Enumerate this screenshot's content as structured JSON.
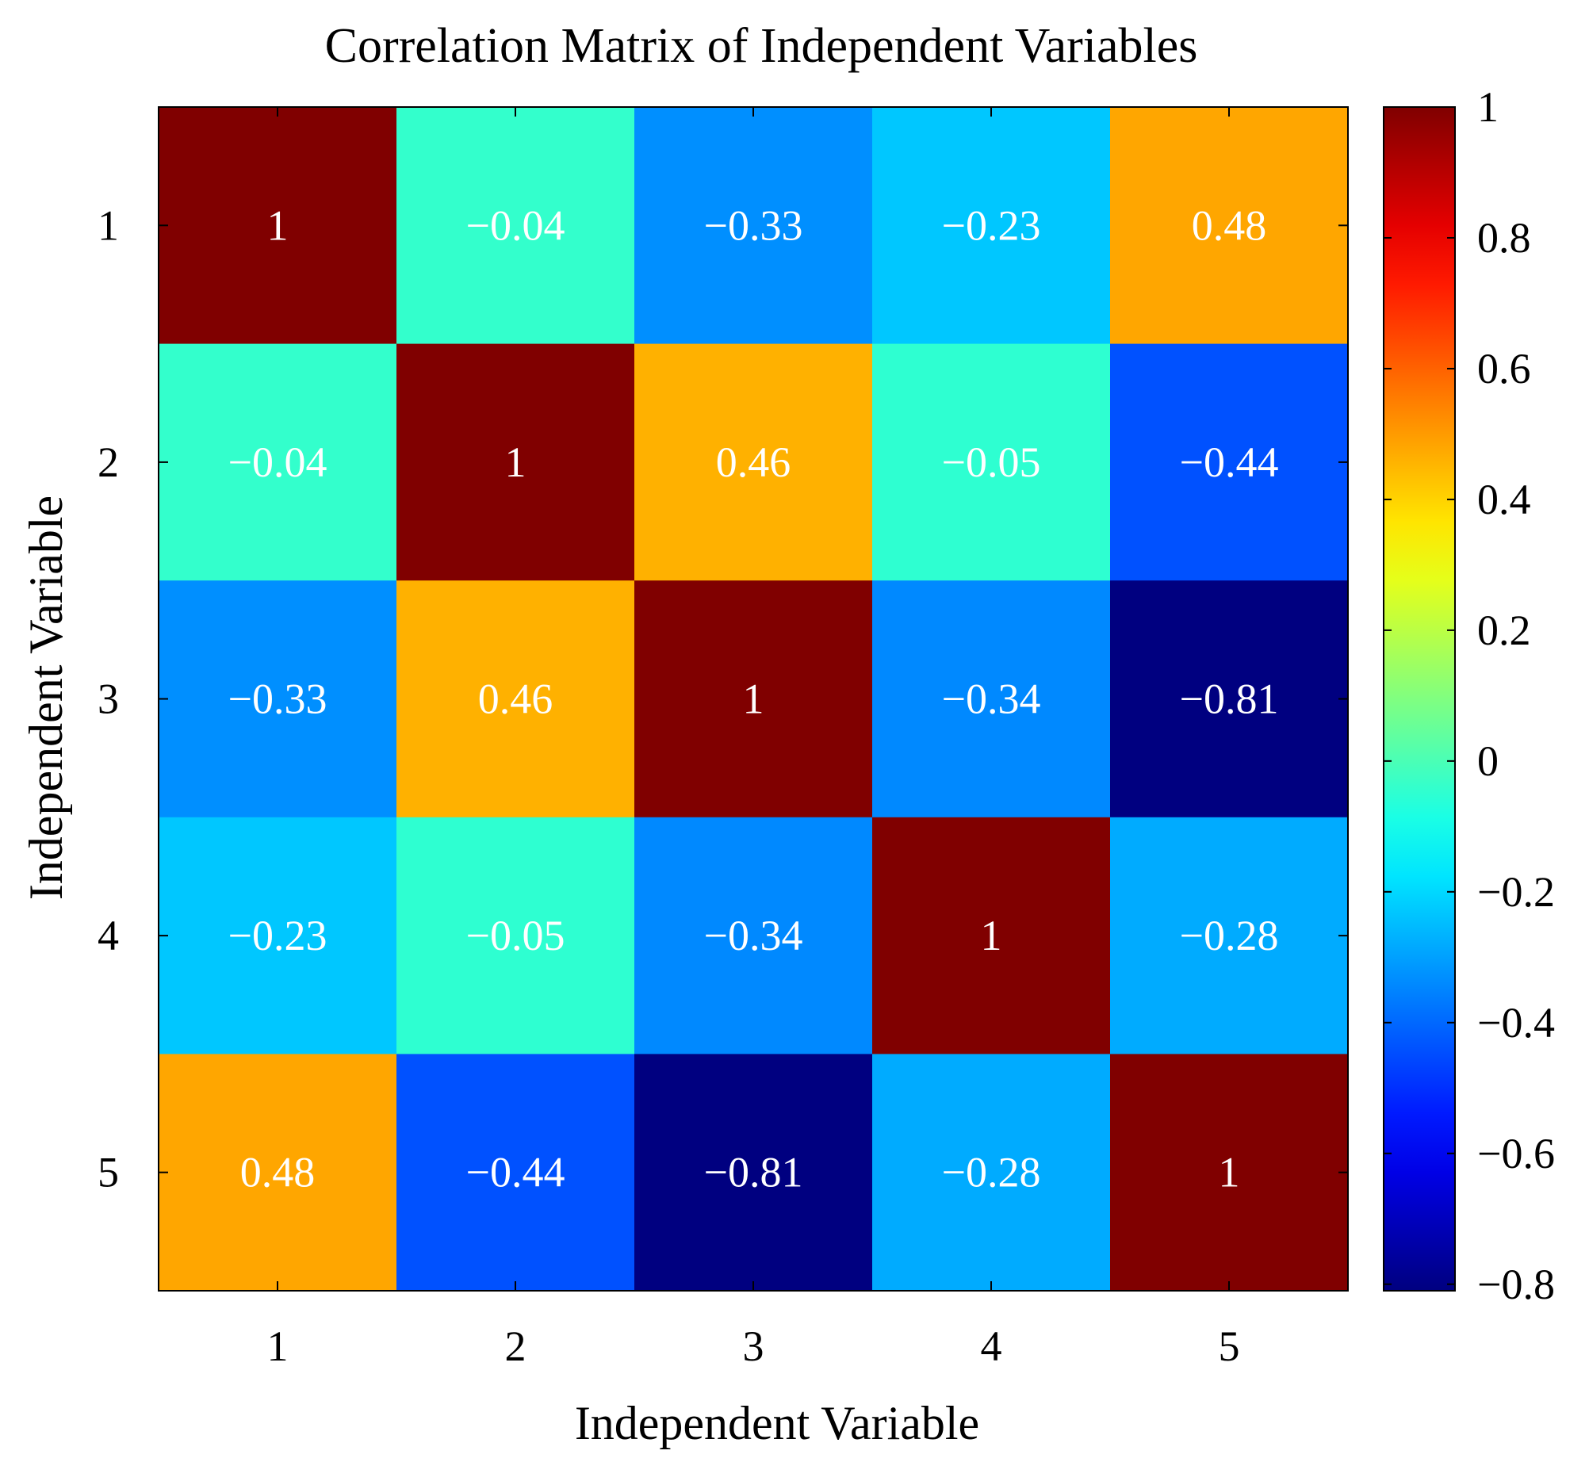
{
  "chart_data": {
    "type": "heatmap",
    "title": "Correlation Matrix of Independent Variables",
    "xlabel": "Independent Variable",
    "ylabel": "Independent Variable",
    "x_categories": [
      "1",
      "2",
      "3",
      "4",
      "5"
    ],
    "y_categories": [
      "1",
      "2",
      "3",
      "4",
      "5"
    ],
    "values": [
      [
        1,
        -0.04,
        -0.33,
        -0.23,
        0.48
      ],
      [
        -0.04,
        1,
        0.46,
        -0.05,
        -0.44
      ],
      [
        -0.33,
        0.46,
        1,
        -0.34,
        -0.81
      ],
      [
        -0.23,
        -0.05,
        -0.34,
        1,
        -0.28
      ],
      [
        0.48,
        -0.44,
        -0.81,
        -0.28,
        1
      ]
    ],
    "cell_labels": [
      [
        "1",
        "−0.04",
        "−0.33",
        "−0.23",
        "0.48"
      ],
      [
        "−0.04",
        "1",
        "0.46",
        "−0.05",
        "−0.44"
      ],
      [
        "−0.33",
        "0.46",
        "1",
        "−0.34",
        "−0.81"
      ],
      [
        "−0.23",
        "−0.05",
        "−0.34",
        "1",
        "−0.28"
      ],
      [
        "0.48",
        "−0.44",
        "−0.81",
        "−0.28",
        "1"
      ]
    ],
    "colorbar": {
      "colormap": "jet",
      "range": [
        -0.81,
        1
      ],
      "ticks": [
        1,
        0.8,
        0.6,
        0.4,
        0.2,
        0,
        -0.2,
        -0.4,
        -0.6,
        -0.8
      ],
      "tick_labels": [
        "1",
        "0.8",
        "0.6",
        "0.4",
        "0.2",
        "0",
        "−0.2",
        "−0.4",
        "−0.6",
        "−0.8"
      ]
    }
  }
}
